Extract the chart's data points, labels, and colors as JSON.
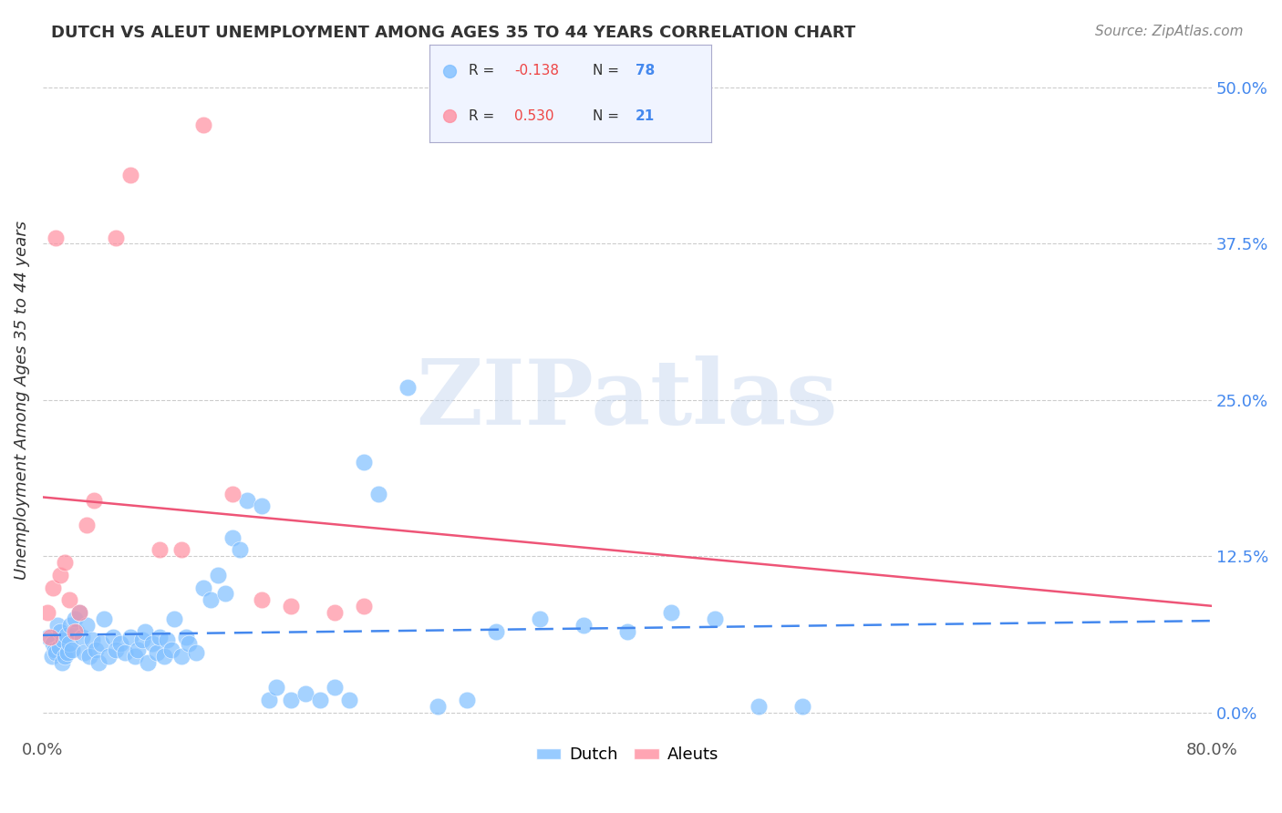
{
  "title": "DUTCH VS ALEUT UNEMPLOYMENT AMONG AGES 35 TO 44 YEARS CORRELATION CHART",
  "source": "Source: ZipAtlas.com",
  "xlabel": "",
  "ylabel": "Unemployment Among Ages 35 to 44 years",
  "xlim": [
    0.0,
    0.8
  ],
  "ylim": [
    -0.02,
    0.52
  ],
  "yticks": [
    0.0,
    0.125,
    0.25,
    0.375,
    0.5
  ],
  "ytick_labels": [
    "0.0%",
    "12.5%",
    "25.0%",
    "37.5%",
    "50.0%"
  ],
  "xticks": [
    0.0,
    0.8
  ],
  "xtick_labels": [
    "0.0%",
    "80.0%"
  ],
  "dutch_R": -0.138,
  "dutch_N": 78,
  "aleut_R": 0.53,
  "aleut_N": 21,
  "dutch_color": "#7fbfff",
  "aleut_color": "#ff8fa0",
  "trend_dutch_color": "#4488ee",
  "trend_aleut_color": "#ee5577",
  "background_color": "#ffffff",
  "watermark": "ZIPatlas",
  "watermark_color": "#c8d8f0",
  "legend_box_color": "#e8f0ff",
  "dutch_x": [
    0.004,
    0.006,
    0.007,
    0.008,
    0.009,
    0.01,
    0.011,
    0.012,
    0.013,
    0.014,
    0.015,
    0.016,
    0.017,
    0.018,
    0.019,
    0.02,
    0.022,
    0.023,
    0.025,
    0.027,
    0.028,
    0.03,
    0.032,
    0.034,
    0.036,
    0.038,
    0.04,
    0.042,
    0.045,
    0.048,
    0.05,
    0.053,
    0.056,
    0.06,
    0.063,
    0.065,
    0.068,
    0.07,
    0.072,
    0.075,
    0.078,
    0.08,
    0.083,
    0.085,
    0.088,
    0.09,
    0.095,
    0.098,
    0.1,
    0.105,
    0.11,
    0.115,
    0.12,
    0.125,
    0.13,
    0.135,
    0.14,
    0.15,
    0.155,
    0.16,
    0.17,
    0.18,
    0.19,
    0.2,
    0.21,
    0.22,
    0.23,
    0.25,
    0.27,
    0.29,
    0.31,
    0.34,
    0.37,
    0.4,
    0.43,
    0.46,
    0.49,
    0.52
  ],
  "dutch_y": [
    0.06,
    0.045,
    0.055,
    0.05,
    0.048,
    0.07,
    0.052,
    0.065,
    0.04,
    0.058,
    0.045,
    0.062,
    0.048,
    0.055,
    0.07,
    0.05,
    0.075,
    0.065,
    0.08,
    0.06,
    0.048,
    0.07,
    0.045,
    0.058,
    0.05,
    0.04,
    0.055,
    0.075,
    0.045,
    0.06,
    0.05,
    0.055,
    0.048,
    0.06,
    0.045,
    0.05,
    0.058,
    0.065,
    0.04,
    0.055,
    0.048,
    0.06,
    0.045,
    0.058,
    0.05,
    0.075,
    0.045,
    0.06,
    0.055,
    0.048,
    0.1,
    0.09,
    0.11,
    0.095,
    0.14,
    0.13,
    0.17,
    0.165,
    0.01,
    0.02,
    0.01,
    0.015,
    0.01,
    0.02,
    0.01,
    0.2,
    0.175,
    0.26,
    0.005,
    0.01,
    0.065,
    0.075,
    0.07,
    0.065,
    0.08,
    0.075,
    0.005,
    0.005
  ],
  "aleut_x": [
    0.003,
    0.005,
    0.007,
    0.009,
    0.012,
    0.015,
    0.018,
    0.022,
    0.025,
    0.03,
    0.035,
    0.05,
    0.06,
    0.08,
    0.095,
    0.11,
    0.13,
    0.15,
    0.17,
    0.2,
    0.22
  ],
  "aleut_y": [
    0.08,
    0.06,
    0.1,
    0.38,
    0.11,
    0.12,
    0.09,
    0.065,
    0.08,
    0.15,
    0.17,
    0.38,
    0.43,
    0.13,
    0.13,
    0.47,
    0.175,
    0.09,
    0.085,
    0.08,
    0.085
  ]
}
